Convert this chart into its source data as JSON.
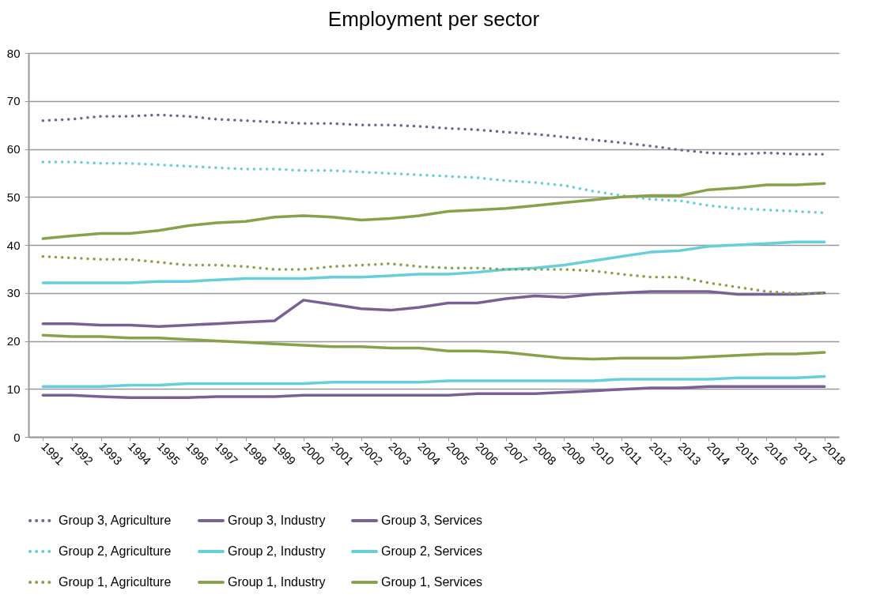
{
  "chart_data": {
    "type": "line",
    "title": "Employment per sector",
    "categories": [
      "1991",
      "1992",
      "1993",
      "1994",
      "1995",
      "1996",
      "1997",
      "1998",
      "1999",
      "2000",
      "2001",
      "2002",
      "2003",
      "2004",
      "2005",
      "2006",
      "2007",
      "2008",
      "2009",
      "2010",
      "2011",
      "2012",
      "2013",
      "2014",
      "2015",
      "2016",
      "2017",
      "2018"
    ],
    "ylim": [
      0,
      80
    ],
    "yticks": [
      0,
      10,
      20,
      30,
      40,
      50,
      60,
      70,
      80
    ],
    "grid": "y",
    "legend": "bottom",
    "marker": "none",
    "series": [
      {
        "name": "Group 3, Agriculture",
        "color": "#7a6195",
        "line_style": "dotted",
        "values": [
          65.9,
          66.2,
          66.8,
          66.8,
          67.1,
          66.8,
          66.2,
          65.9,
          65.6,
          65.3,
          65.3,
          65.0,
          65.0,
          64.7,
          64.3,
          64.0,
          63.5,
          63.1,
          62.5,
          61.9,
          61.3,
          60.6,
          59.8,
          59.2,
          58.9,
          59.2,
          58.9,
          58.9
        ]
      },
      {
        "name": "Group 3, Industry",
        "color": "#7a6195",
        "line_style": "solid",
        "values": [
          8.7,
          8.7,
          8.4,
          8.2,
          8.2,
          8.2,
          8.4,
          8.4,
          8.4,
          8.7,
          8.7,
          8.7,
          8.7,
          8.7,
          8.7,
          9.0,
          9.0,
          9.0,
          9.3,
          9.6,
          9.9,
          10.2,
          10.2,
          10.5,
          10.5,
          10.5,
          10.5,
          10.5
        ]
      },
      {
        "name": "Group 3, Services",
        "color": "#7a6195",
        "line_style": "solid",
        "values": [
          23.6,
          23.6,
          23.3,
          23.3,
          23.0,
          23.3,
          23.6,
          23.9,
          24.2,
          28.5,
          27.6,
          26.7,
          26.4,
          27.0,
          27.9,
          27.9,
          28.8,
          29.4,
          29.1,
          29.7,
          30.0,
          30.3,
          30.3,
          30.3,
          29.7,
          29.7,
          29.7,
          30.0
        ]
      },
      {
        "name": "Group 2, Agriculture",
        "color": "#66cfda",
        "line_style": "dotted",
        "values": [
          57.3,
          57.3,
          57.0,
          57.0,
          56.7,
          56.4,
          56.1,
          55.8,
          55.8,
          55.5,
          55.5,
          55.2,
          54.9,
          54.6,
          54.3,
          54.0,
          53.4,
          53.0,
          52.4,
          51.2,
          50.3,
          49.5,
          49.2,
          48.2,
          47.6,
          47.3,
          47.0,
          46.7
        ]
      },
      {
        "name": "Group 2, Industry",
        "color": "#66cfda",
        "line_style": "solid",
        "values": [
          10.5,
          10.5,
          10.5,
          10.8,
          10.8,
          11.1,
          11.1,
          11.1,
          11.1,
          11.1,
          11.4,
          11.4,
          11.4,
          11.4,
          11.7,
          11.7,
          11.7,
          11.7,
          11.7,
          11.7,
          12.0,
          12.0,
          12.0,
          12.0,
          12.3,
          12.3,
          12.3,
          12.6
        ]
      },
      {
        "name": "Group 2, Services",
        "color": "#66cfda",
        "line_style": "solid",
        "values": [
          32.1,
          32.1,
          32.1,
          32.1,
          32.4,
          32.4,
          32.7,
          33.0,
          33.0,
          33.0,
          33.3,
          33.3,
          33.6,
          33.9,
          33.9,
          34.3,
          34.9,
          35.2,
          35.8,
          36.7,
          37.6,
          38.5,
          38.8,
          39.7,
          40.0,
          40.3,
          40.6,
          40.6
        ]
      },
      {
        "name": "Group 1, Agriculture",
        "color": "#87a24b",
        "line_style": "dotted",
        "values": [
          37.6,
          37.3,
          37.0,
          37.0,
          36.4,
          35.8,
          35.8,
          35.5,
          34.9,
          34.9,
          35.5,
          35.8,
          36.1,
          35.5,
          35.2,
          35.2,
          34.9,
          34.9,
          34.9,
          34.6,
          33.9,
          33.3,
          33.3,
          32.1,
          31.2,
          30.3,
          29.9,
          29.9
        ]
      },
      {
        "name": "Group 1, Industry",
        "color": "#87a24b",
        "line_style": "solid",
        "values": [
          21.2,
          20.9,
          20.9,
          20.6,
          20.6,
          20.3,
          20.0,
          19.7,
          19.4,
          19.1,
          18.8,
          18.8,
          18.5,
          18.5,
          17.9,
          17.9,
          17.6,
          17.0,
          16.4,
          16.2,
          16.4,
          16.4,
          16.4,
          16.7,
          17.0,
          17.3,
          17.3,
          17.6
        ]
      },
      {
        "name": "Group 1, Services",
        "color": "#87a24b",
        "line_style": "solid",
        "values": [
          41.3,
          41.9,
          42.4,
          42.4,
          43.0,
          44.0,
          44.6,
          44.9,
          45.8,
          46.1,
          45.8,
          45.2,
          45.5,
          46.1,
          47.0,
          47.3,
          47.6,
          48.2,
          48.8,
          49.4,
          50.0,
          50.3,
          50.3,
          51.5,
          51.9,
          52.5,
          52.5,
          52.8
        ]
      }
    ]
  }
}
